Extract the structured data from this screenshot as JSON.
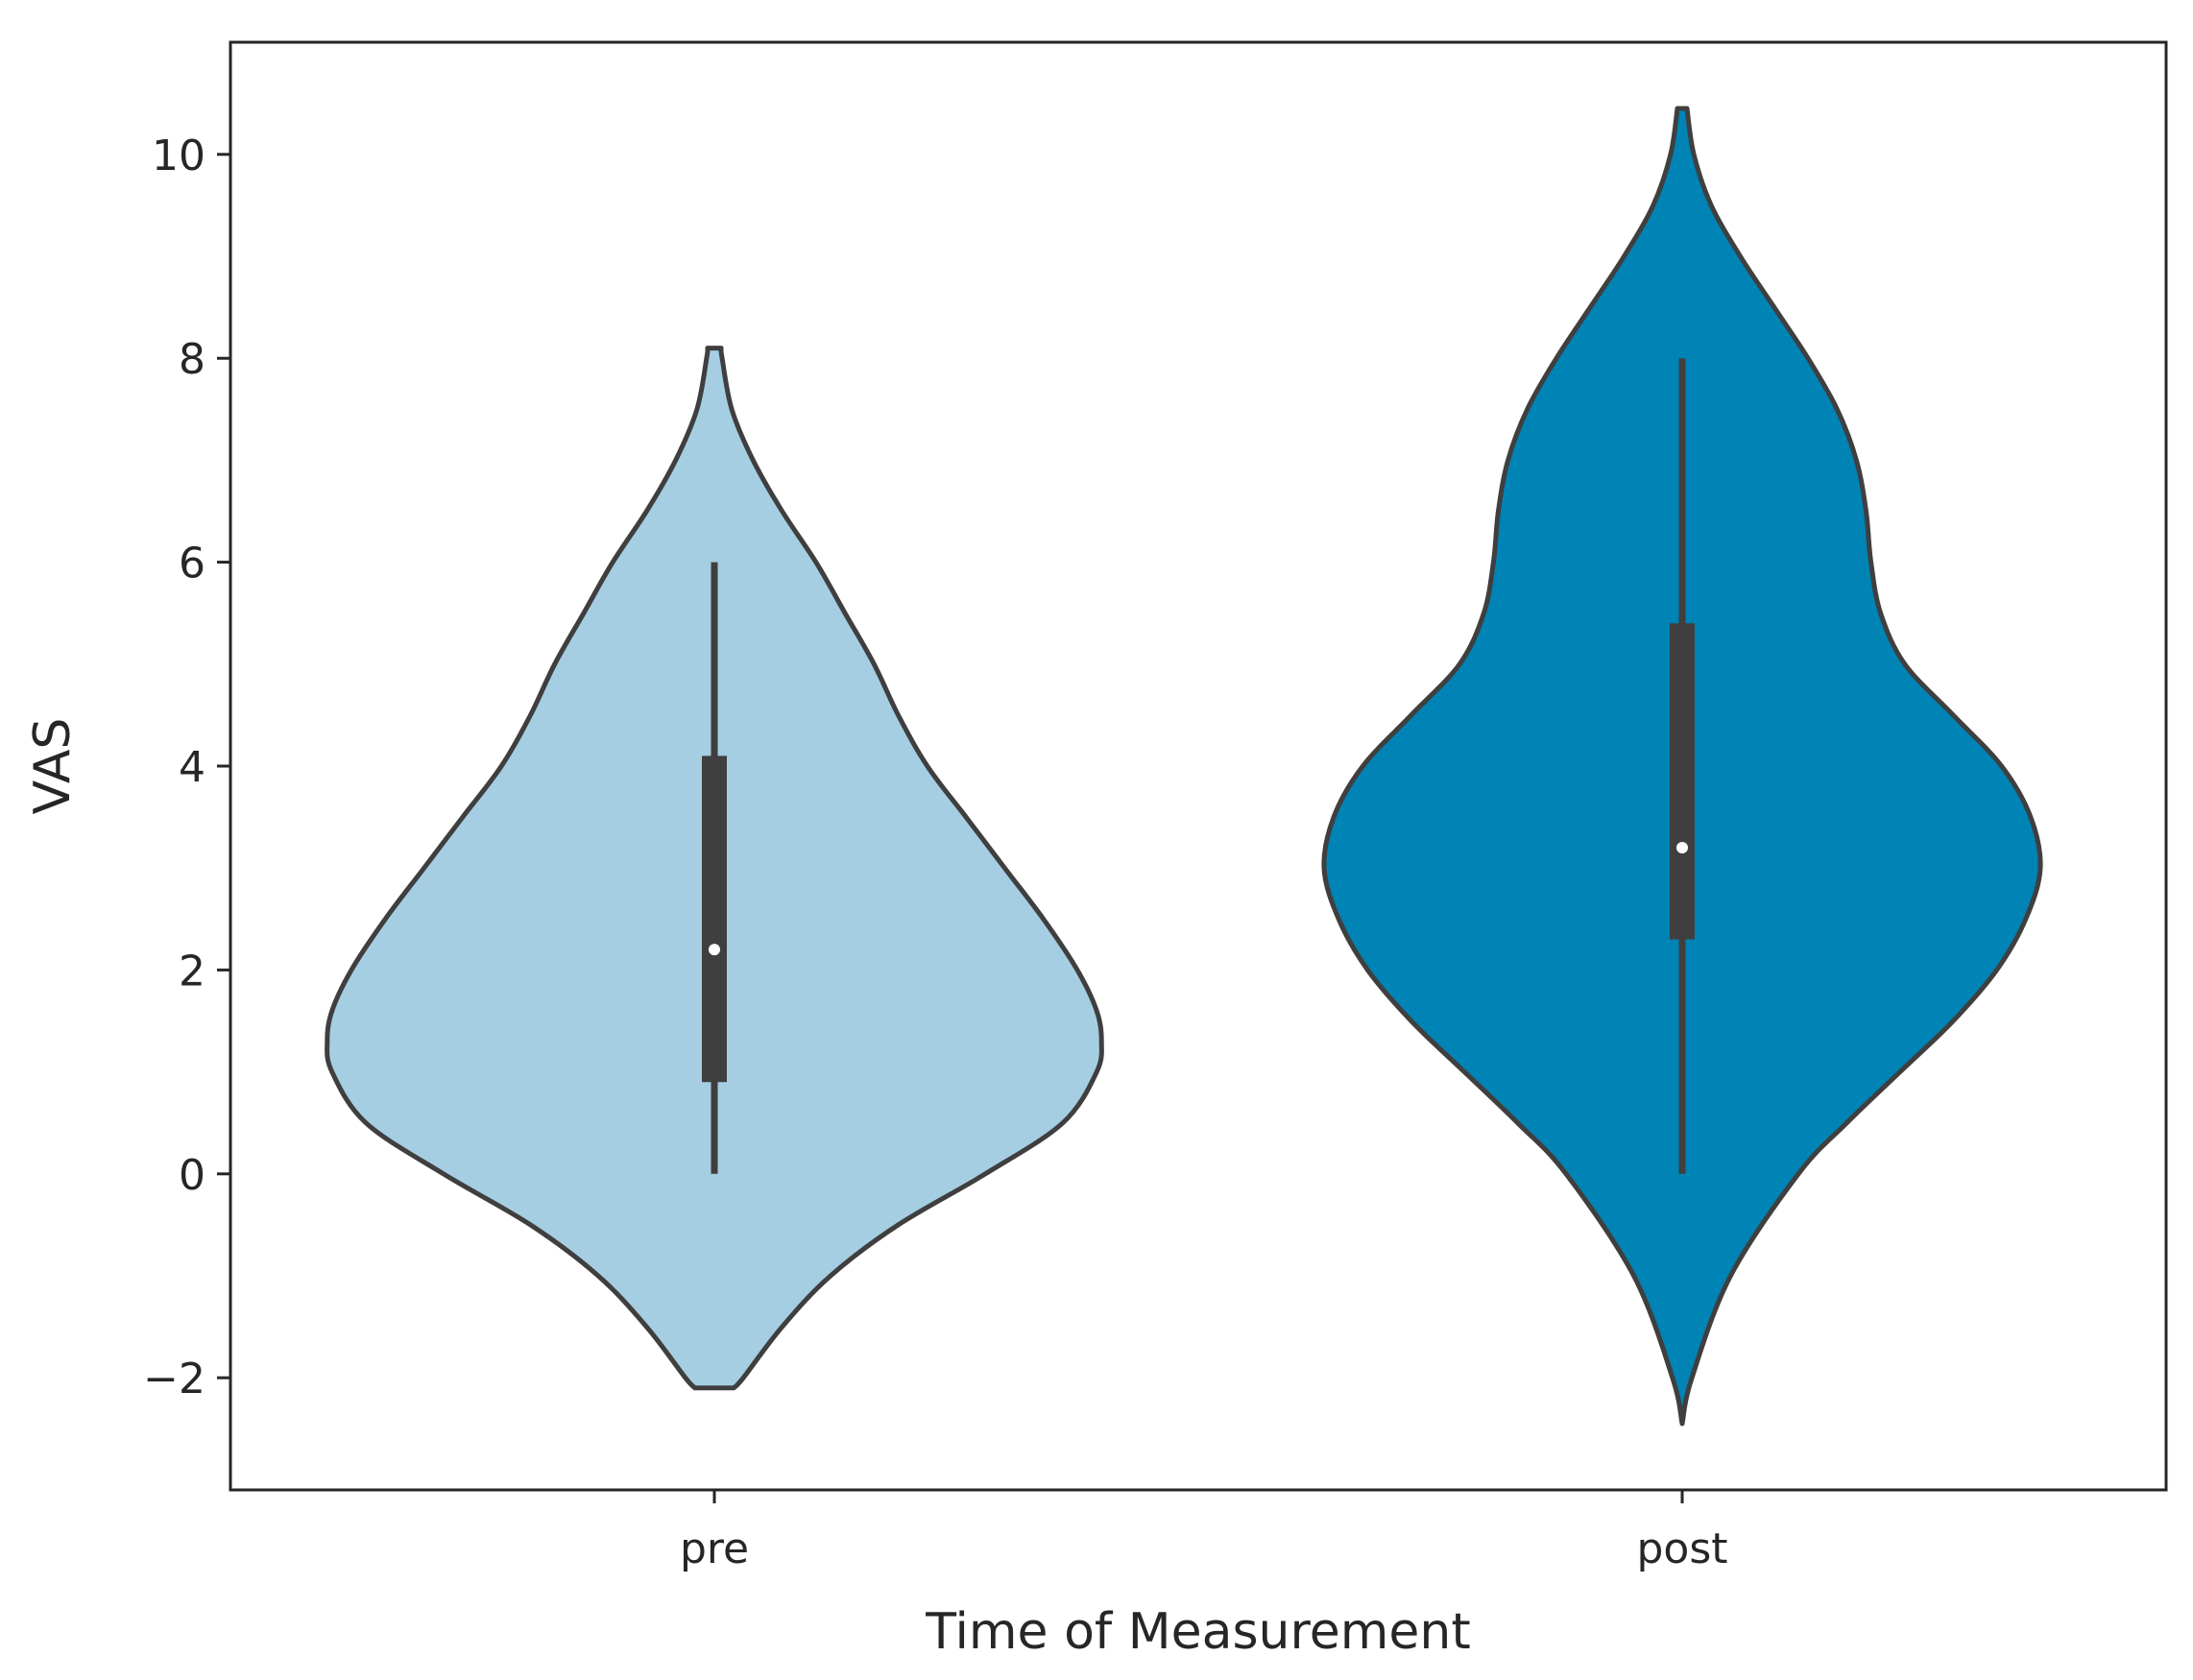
{
  "chart_data": {
    "type": "violin",
    "xlabel": "Time of Measurement",
    "ylabel": "VAS",
    "categories": [
      "pre",
      "post"
    ],
    "ylim": [
      -3.1,
      11.1
    ],
    "yticks": [
      -2,
      0,
      2,
      4,
      6,
      8,
      10
    ],
    "grid": false,
    "legend": "none",
    "series": [
      {
        "category": "pre",
        "color": "#a6cee3",
        "kde_range": [
          -2.1,
          8.1
        ],
        "max_half_width": 0.4,
        "density_profile": [
          [
            -2.1,
            0.02
          ],
          [
            -2.0,
            0.03
          ],
          [
            -1.5,
            0.07
          ],
          [
            -1.0,
            0.12
          ],
          [
            -0.5,
            0.19
          ],
          [
            0.0,
            0.28
          ],
          [
            0.5,
            0.36
          ],
          [
            1.0,
            0.395
          ],
          [
            1.3,
            0.4
          ],
          [
            1.6,
            0.395
          ],
          [
            2.0,
            0.375
          ],
          [
            2.5,
            0.34
          ],
          [
            3.0,
            0.3
          ],
          [
            3.5,
            0.26
          ],
          [
            4.0,
            0.22
          ],
          [
            4.5,
            0.19
          ],
          [
            5.0,
            0.165
          ],
          [
            5.5,
            0.135
          ],
          [
            6.0,
            0.105
          ],
          [
            6.5,
            0.07
          ],
          [
            7.0,
            0.04
          ],
          [
            7.5,
            0.018
          ],
          [
            8.0,
            0.008
          ],
          [
            8.1,
            0.007
          ]
        ],
        "whisker": [
          0,
          6
        ],
        "q1": 0.9,
        "q3": 4.1,
        "median": 2.2
      },
      {
        "category": "post",
        "color": "#0083b5",
        "kde_range": [
          -2.45,
          10.45
        ],
        "max_half_width": 0.37,
        "density_profile": [
          [
            -2.45,
            0.0
          ],
          [
            -2.0,
            0.01
          ],
          [
            -1.0,
            0.05
          ],
          [
            0.0,
            0.12
          ],
          [
            0.5,
            0.17
          ],
          [
            1.0,
            0.225
          ],
          [
            1.5,
            0.28
          ],
          [
            2.0,
            0.325
          ],
          [
            2.5,
            0.355
          ],
          [
            3.0,
            0.37
          ],
          [
            3.5,
            0.36
          ],
          [
            4.0,
            0.33
          ],
          [
            4.5,
            0.28
          ],
          [
            5.0,
            0.23
          ],
          [
            5.5,
            0.205
          ],
          [
            6.0,
            0.195
          ],
          [
            6.5,
            0.19
          ],
          [
            7.0,
            0.18
          ],
          [
            7.5,
            0.16
          ],
          [
            8.0,
            0.13
          ],
          [
            8.5,
            0.095
          ],
          [
            9.0,
            0.06
          ],
          [
            9.5,
            0.03
          ],
          [
            10.0,
            0.012
          ],
          [
            10.45,
            0.005
          ]
        ],
        "whisker": [
          0,
          8
        ],
        "q1": 2.3,
        "q3": 5.4,
        "median": 3.2
      }
    ]
  }
}
